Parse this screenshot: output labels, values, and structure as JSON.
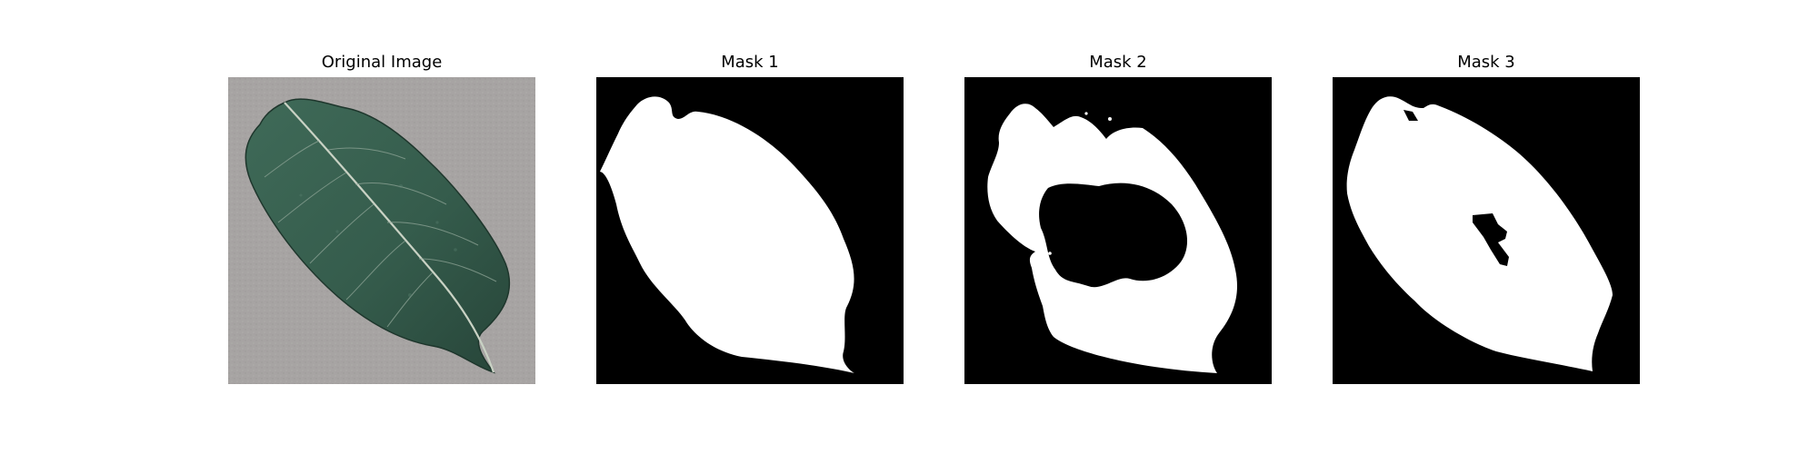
{
  "figure": {
    "panels": [
      {
        "title": "Original Image",
        "kind": "photo"
      },
      {
        "title": "Mask 1",
        "kind": "mask"
      },
      {
        "title": "Mask 2",
        "kind": "mask"
      },
      {
        "title": "Mask 3",
        "kind": "mask"
      }
    ]
  },
  "colors": {
    "background": "#ffffff",
    "photo_background": "#a7a4a3",
    "leaf_dark": "#2f5446",
    "leaf_mid": "#3f6a58",
    "leaf_vein": "#c9d2c4",
    "mask_background": "#000000",
    "mask_foreground": "#ffffff"
  }
}
